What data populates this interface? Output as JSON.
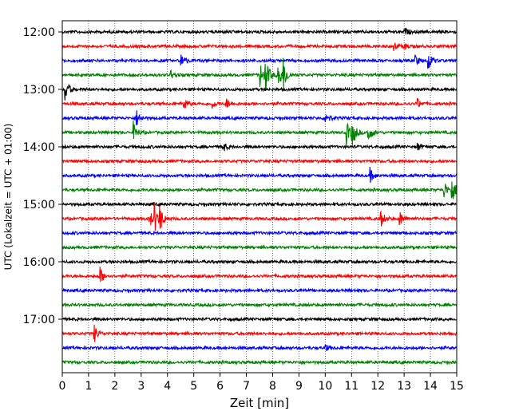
{
  "chart_data": {
    "type": "line",
    "xlabel": "Zeit  [min]",
    "ylabel": "UTC (Lokalzeit = UTC + 01:00)",
    "xlim": [
      0,
      15
    ],
    "x_ticks": [
      "0",
      "1",
      "2",
      "3",
      "4",
      "5",
      "6",
      "7",
      "8",
      "9",
      "10",
      "11",
      "12",
      "13",
      "14",
      "15"
    ],
    "y_tick_labels": [
      "12:00",
      "13:00",
      "14:00",
      "15:00",
      "16:00",
      "17:00"
    ],
    "y_tick_rows": [
      0,
      4,
      8,
      12,
      16,
      20
    ],
    "row_count": 24,
    "row_colors": [
      "#000000",
      "#ff0000",
      "#0000ff",
      "#008000"
    ],
    "grid": "x-dotted",
    "events": [
      [
        {
          "x": 13.0,
          "a": 0.18
        }
      ],
      [
        {
          "x": 12.6,
          "a": 0.2
        },
        {
          "x": 13.0,
          "a": 0.15
        }
      ],
      [
        {
          "x": 4.5,
          "a": 0.45
        },
        {
          "x": 13.4,
          "a": 0.3
        },
        {
          "x": 13.9,
          "a": 0.5
        }
      ],
      [
        {
          "x": 4.1,
          "a": 0.25
        },
        {
          "x": 7.5,
          "a": 0.7
        },
        {
          "x": 7.7,
          "a": 0.9
        },
        {
          "x": 8.2,
          "a": 0.85
        },
        {
          "x": 8.4,
          "a": 0.7
        }
      ],
      [
        {
          "x": 0.1,
          "a": 0.6
        }
      ],
      [
        {
          "x": 4.6,
          "a": 0.35
        },
        {
          "x": 5.7,
          "a": 0.2
        },
        {
          "x": 6.2,
          "a": 0.3
        },
        {
          "x": 13.5,
          "a": 0.25
        }
      ],
      [
        {
          "x": 2.8,
          "a": 0.45
        },
        {
          "x": 10.0,
          "a": 0.3
        }
      ],
      [
        {
          "x": 2.7,
          "a": 0.5
        },
        {
          "x": 10.8,
          "a": 0.55
        },
        {
          "x": 11.0,
          "a": 0.75
        },
        {
          "x": 11.6,
          "a": 0.6
        }
      ],
      [
        {
          "x": 6.1,
          "a": 0.25
        },
        {
          "x": 13.5,
          "a": 0.2
        }
      ],
      [],
      [
        {
          "x": 11.7,
          "a": 0.35
        }
      ],
      [
        {
          "x": 14.5,
          "a": 0.45
        },
        {
          "x": 14.8,
          "a": 0.7
        }
      ],
      [],
      [
        {
          "x": 3.3,
          "a": 0.5
        },
        {
          "x": 3.5,
          "a": 0.65
        },
        {
          "x": 3.7,
          "a": 0.55
        },
        {
          "x": 12.1,
          "a": 0.45
        },
        {
          "x": 12.8,
          "a": 0.45
        }
      ],
      [],
      [],
      [],
      [
        {
          "x": 1.4,
          "a": 0.55
        }
      ],
      [],
      [],
      [],
      [
        {
          "x": 1.2,
          "a": 0.45
        }
      ],
      [
        {
          "x": 10.0,
          "a": 0.15
        }
      ],
      []
    ]
  }
}
